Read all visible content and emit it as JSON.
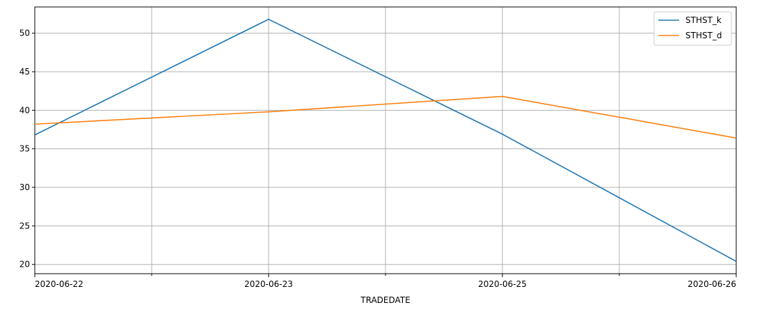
{
  "chart_data": {
    "type": "line",
    "xlabel": "TRADEDATE",
    "ylabel": "",
    "x": [
      "2020-06-22",
      "2020-06-23",
      "2020-06-25",
      "2020-06-26"
    ],
    "x_ticks_labeled": [
      "2020-06-22",
      "2020-06-23",
      "2020-06-25",
      "2020-06-26"
    ],
    "y_ticks": [
      20,
      25,
      30,
      35,
      40,
      45,
      50
    ],
    "ylim": [
      18.8,
      53.4
    ],
    "grid": true,
    "legend_position": "top-right",
    "series": [
      {
        "name": "STHST_k",
        "color": "#1f77b4",
        "values": [
          36.8,
          51.8,
          36.9,
          20.4
        ]
      },
      {
        "name": "STHST_d",
        "color": "#ff7f0e",
        "values": [
          38.2,
          39.8,
          41.8,
          36.4
        ]
      }
    ]
  }
}
